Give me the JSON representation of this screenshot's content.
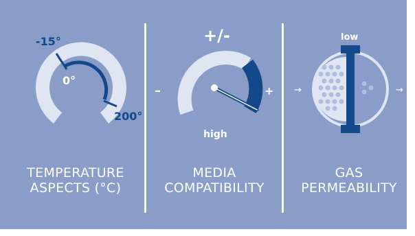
{
  "colors": {
    "background": "#8a9dc9",
    "light_arc": "#dfe5f1",
    "accent_navy": "#13498a",
    "text_white": "#ffffff"
  },
  "temperature": {
    "caption_line1": "TEMPERATURE",
    "caption_line2": "ASPECTS (°C)",
    "label_low": "-15°",
    "label_zero": "0°",
    "label_high": "200°"
  },
  "media": {
    "caption_line1": "MEDIA",
    "caption_line2": "COMPATIBILITY",
    "label_top": "+/-",
    "label_minus": "–",
    "label_plus": "+",
    "label_bottom": "high"
  },
  "gas": {
    "caption_line1": "GAS",
    "caption_line2": "PERMEABILITY",
    "label_top": "low",
    "arrow_in": "→",
    "arrow_out": "→"
  }
}
